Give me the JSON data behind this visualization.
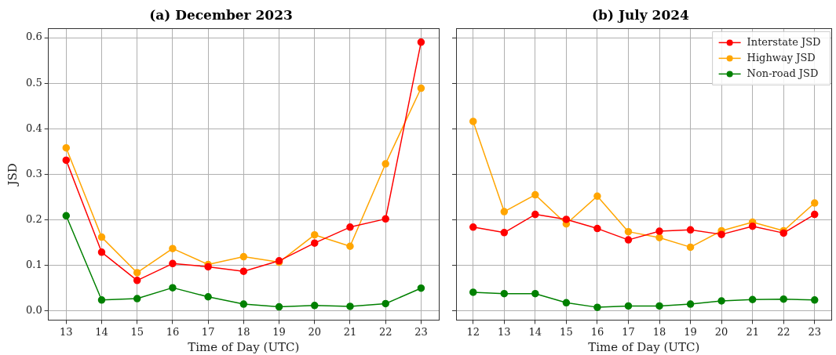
{
  "chart_data": [
    {
      "type": "line",
      "title": "(a) December 2023",
      "xlabel": "Time of Day (UTC)",
      "ylabel": "JSD",
      "x": [
        13,
        14,
        15,
        16,
        17,
        18,
        19,
        20,
        21,
        22,
        23
      ],
      "xlim": [
        12.5,
        23.5
      ],
      "xticks": [
        13,
        14,
        15,
        16,
        17,
        18,
        19,
        20,
        21,
        22,
        23
      ],
      "ylim": [
        -0.02,
        0.62
      ],
      "yticks": [
        {
          "value": 0,
          "label": "0.0"
        },
        {
          "value": 0.1,
          "label": "0.1"
        },
        {
          "value": 0.2,
          "label": "0.2"
        },
        {
          "value": 0.3,
          "label": "0.3"
        },
        {
          "value": 0.4,
          "label": "0.4"
        },
        {
          "value": 0.5,
          "label": "0.5"
        },
        {
          "value": 0.6,
          "label": "0.6"
        }
      ],
      "grid": true,
      "marker": "circle",
      "series": [
        {
          "color": "#ff0000",
          "values": [
            0.331,
            0.129,
            0.067,
            0.104,
            0.097,
            0.087,
            0.11,
            0.149,
            0.184,
            0.202,
            0.59
          ]
        },
        {
          "color": "#ffa500",
          "values": [
            0.358,
            0.162,
            0.084,
            0.137,
            0.102,
            0.119,
            0.107,
            0.167,
            0.142,
            0.323,
            0.489
          ]
        },
        {
          "color": "#008000",
          "values": [
            0.209,
            0.024,
            0.027,
            0.051,
            0.031,
            0.015,
            0.009,
            0.012,
            0.01,
            0.016,
            0.05
          ]
        }
      ]
    },
    {
      "type": "line",
      "title": "(b) July 2024",
      "xlabel": "Time of Day (UTC)",
      "x": [
        12,
        13,
        14,
        15,
        16,
        17,
        18,
        19,
        20,
        21,
        22,
        23
      ],
      "xlim": [
        11.45,
        23.55
      ],
      "xticks": [
        12,
        13,
        14,
        15,
        16,
        17,
        18,
        19,
        20,
        21,
        22,
        23
      ],
      "ylim": [
        -0.02,
        0.62
      ],
      "yticks": [
        0,
        0.1,
        0.2,
        0.3,
        0.4,
        0.5,
        0.6
      ],
      "tick_labels": "x",
      "grid": true,
      "marker": "circle",
      "legend": "top right",
      "series": [
        {
          "name": "Interstate JSD",
          "color": "#ff0000",
          "values": [
            0.184,
            0.172,
            0.212,
            0.201,
            0.181,
            0.156,
            0.175,
            0.178,
            0.168,
            0.186,
            0.171,
            0.212
          ]
        },
        {
          "name": "Highway JSD",
          "color": "#ffa500",
          "values": [
            0.416,
            0.218,
            0.255,
            0.191,
            0.252,
            0.174,
            0.161,
            0.14,
            0.176,
            0.195,
            0.176,
            0.237
          ]
        },
        {
          "name": "Non-road JSD",
          "color": "#008000",
          "values": [
            0.041,
            0.038,
            0.038,
            0.018,
            0.008,
            0.011,
            0.011,
            0.015,
            0.022,
            0.025,
            0.026,
            0.024
          ]
        }
      ]
    }
  ]
}
